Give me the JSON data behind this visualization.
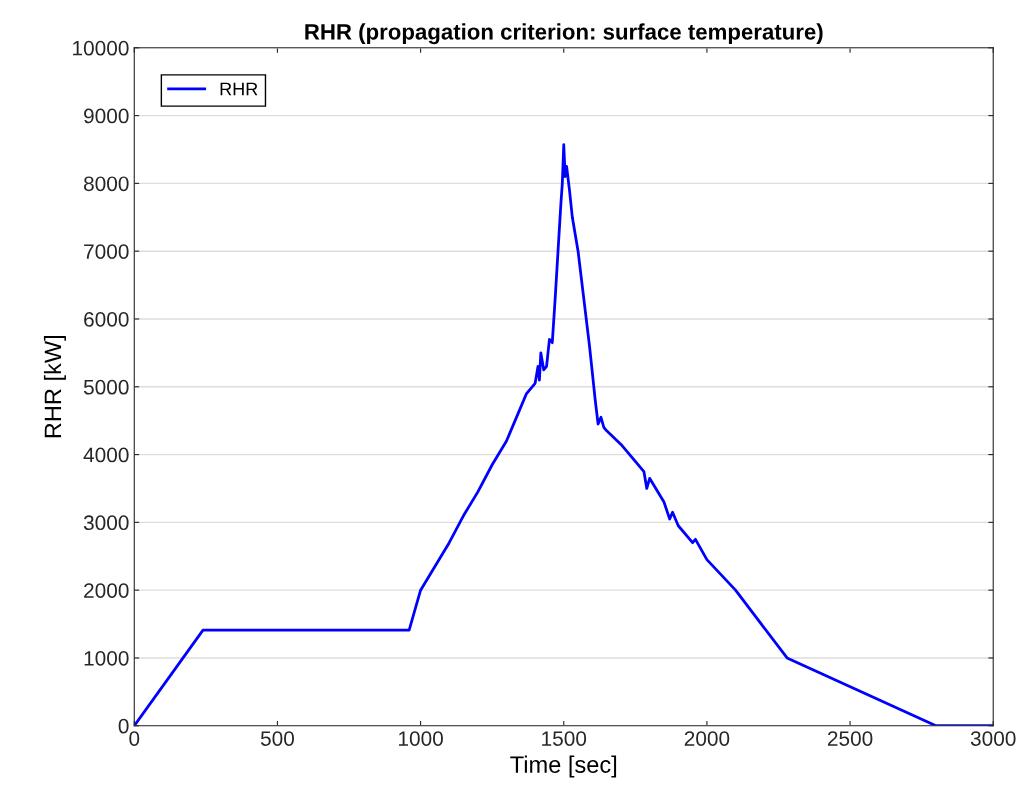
{
  "chart_data": {
    "type": "line",
    "title": "RHR (propagation criterion: surface temperature)",
    "xlabel": "Time [sec]",
    "ylabel": "RHR [kW]",
    "xlim": [
      0,
      3000
    ],
    "xticks": [
      0,
      500,
      1000,
      1500,
      2000,
      2500,
      3000
    ],
    "ylim": [
      0,
      10000
    ],
    "yticks": [
      0,
      1000,
      2000,
      3000,
      4000,
      5000,
      6000,
      7000,
      8000,
      9000,
      10000
    ],
    "grid": "y",
    "legend": "top left",
    "series": [
      {
        "name": "RHR",
        "color": "#0000ff",
        "x": [
          0,
          240,
          960,
          1000,
          1050,
          1100,
          1150,
          1200,
          1250,
          1300,
          1340,
          1370,
          1400,
          1410,
          1415,
          1420,
          1430,
          1440,
          1450,
          1460,
          1470,
          1480,
          1490,
          1495,
          1500,
          1505,
          1510,
          1520,
          1530,
          1550,
          1570,
          1590,
          1600,
          1610,
          1620,
          1630,
          1640,
          1650,
          1700,
          1750,
          1780,
          1790,
          1800,
          1850,
          1870,
          1880,
          1900,
          1950,
          1960,
          2000,
          2100,
          2280,
          2800,
          3000
        ],
        "values": [
          0,
          1410,
          1410,
          2000,
          2350,
          2700,
          3100,
          3450,
          3850,
          4200,
          4600,
          4900,
          5050,
          5300,
          5100,
          5500,
          5250,
          5300,
          5700,
          5650,
          6300,
          7000,
          7700,
          8000,
          8570,
          8100,
          8250,
          7900,
          7500,
          7000,
          6300,
          5600,
          5200,
          4800,
          4450,
          4550,
          4400,
          4350,
          4150,
          3900,
          3750,
          3500,
          3650,
          3300,
          3050,
          3150,
          2950,
          2700,
          2750,
          2450,
          2000,
          1000,
          0,
          0
        ]
      }
    ]
  }
}
